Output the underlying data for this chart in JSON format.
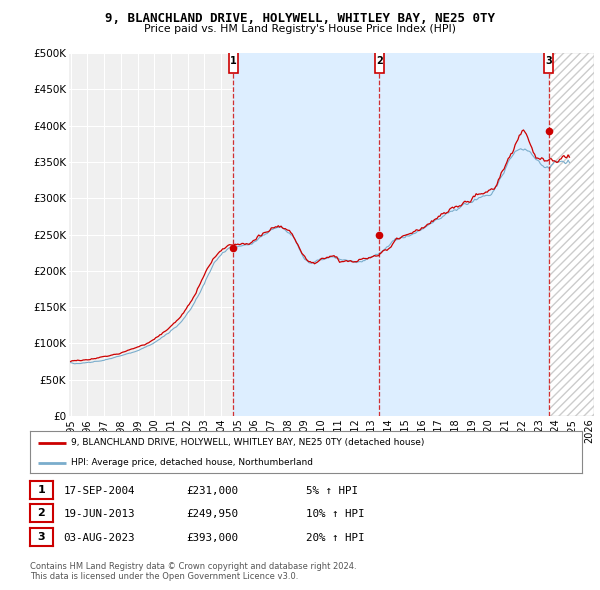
{
  "title": "9, BLANCHLAND DRIVE, HOLYWELL, WHITLEY BAY, NE25 0TY",
  "subtitle": "Price paid vs. HM Land Registry's House Price Index (HPI)",
  "ylim": [
    0,
    500000
  ],
  "yticks": [
    0,
    50000,
    100000,
    150000,
    200000,
    250000,
    300000,
    350000,
    400000,
    450000,
    500000
  ],
  "ytick_labels": [
    "£0",
    "£50K",
    "£100K",
    "£150K",
    "£200K",
    "£250K",
    "£300K",
    "£350K",
    "£400K",
    "£450K",
    "£500K"
  ],
  "xlim_start": 1994.9,
  "xlim_end": 2026.3,
  "background_color": "#ffffff",
  "plot_bg_color": "#f0f0f0",
  "grid_color": "#ffffff",
  "red_color": "#cc0000",
  "blue_color": "#7aadcc",
  "shade_color": "#ddeeff",
  "transactions": [
    {
      "year": 2004.72,
      "price": 231000,
      "label": "1",
      "date": "17-SEP-2004",
      "price_str": "£231,000",
      "pct": "5% ↑ HPI"
    },
    {
      "year": 2013.47,
      "price": 249950,
      "label": "2",
      "date": "19-JUN-2013",
      "price_str": "£249,950",
      "pct": "10% ↑ HPI"
    },
    {
      "year": 2023.59,
      "price": 393000,
      "label": "3",
      "date": "03-AUG-2023",
      "price_str": "£393,000",
      "pct": "20% ↑ HPI"
    }
  ],
  "legend_property": "9, BLANCHLAND DRIVE, HOLYWELL, WHITLEY BAY, NE25 0TY (detached house)",
  "legend_hpi": "HPI: Average price, detached house, Northumberland",
  "footer1": "Contains HM Land Registry data © Crown copyright and database right 2024.",
  "footer2": "This data is licensed under the Open Government Licence v3.0."
}
